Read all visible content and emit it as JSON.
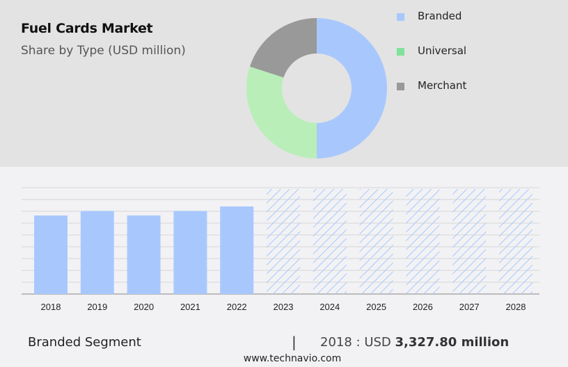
{
  "header": {
    "title": "Fuel Cards Market",
    "subtitle": "Share by Type (USD million)"
  },
  "legend": [
    {
      "label": "Branded",
      "color": "#a8c8fd"
    },
    {
      "label": "Universal",
      "color": "#7ee29a"
    },
    {
      "label": "Merchant",
      "color": "#999999"
    }
  ],
  "footer": {
    "segment_label": "Branded Segment",
    "divider": "|",
    "value_prefix": "2018 : USD ",
    "value_bold": "3,327.80 million",
    "url": "www.technavio.com"
  },
  "chart_data": [
    {
      "type": "pie",
      "variant": "donut",
      "title": "Fuel Cards Market",
      "subtitle": "Share by Type (USD million)",
      "categories": [
        "Branded",
        "Universal",
        "Merchant"
      ],
      "values": [
        50,
        30,
        20
      ],
      "unit": "percent (estimated)",
      "colors": [
        "#a8c8fd",
        "#b9eeb9",
        "#999999"
      ],
      "legend_position": "right"
    },
    {
      "type": "bar",
      "title": "Branded Segment",
      "categories": [
        "2018",
        "2019",
        "2020",
        "2021",
        "2022",
        "2023",
        "2024",
        "2025",
        "2026",
        "2027",
        "2028"
      ],
      "values": [
        3327.8,
        3520,
        3330,
        3520,
        3710,
        null,
        null,
        null,
        null,
        null,
        null
      ],
      "forecast_years": [
        "2023",
        "2024",
        "2025",
        "2026",
        "2027",
        "2028"
      ],
      "forecast_style": "hatched",
      "xlabel": "",
      "ylabel": "",
      "grid": true,
      "bar_color": "#a8c8fd",
      "annotation": "2018 : USD 3,327.80 million"
    }
  ]
}
